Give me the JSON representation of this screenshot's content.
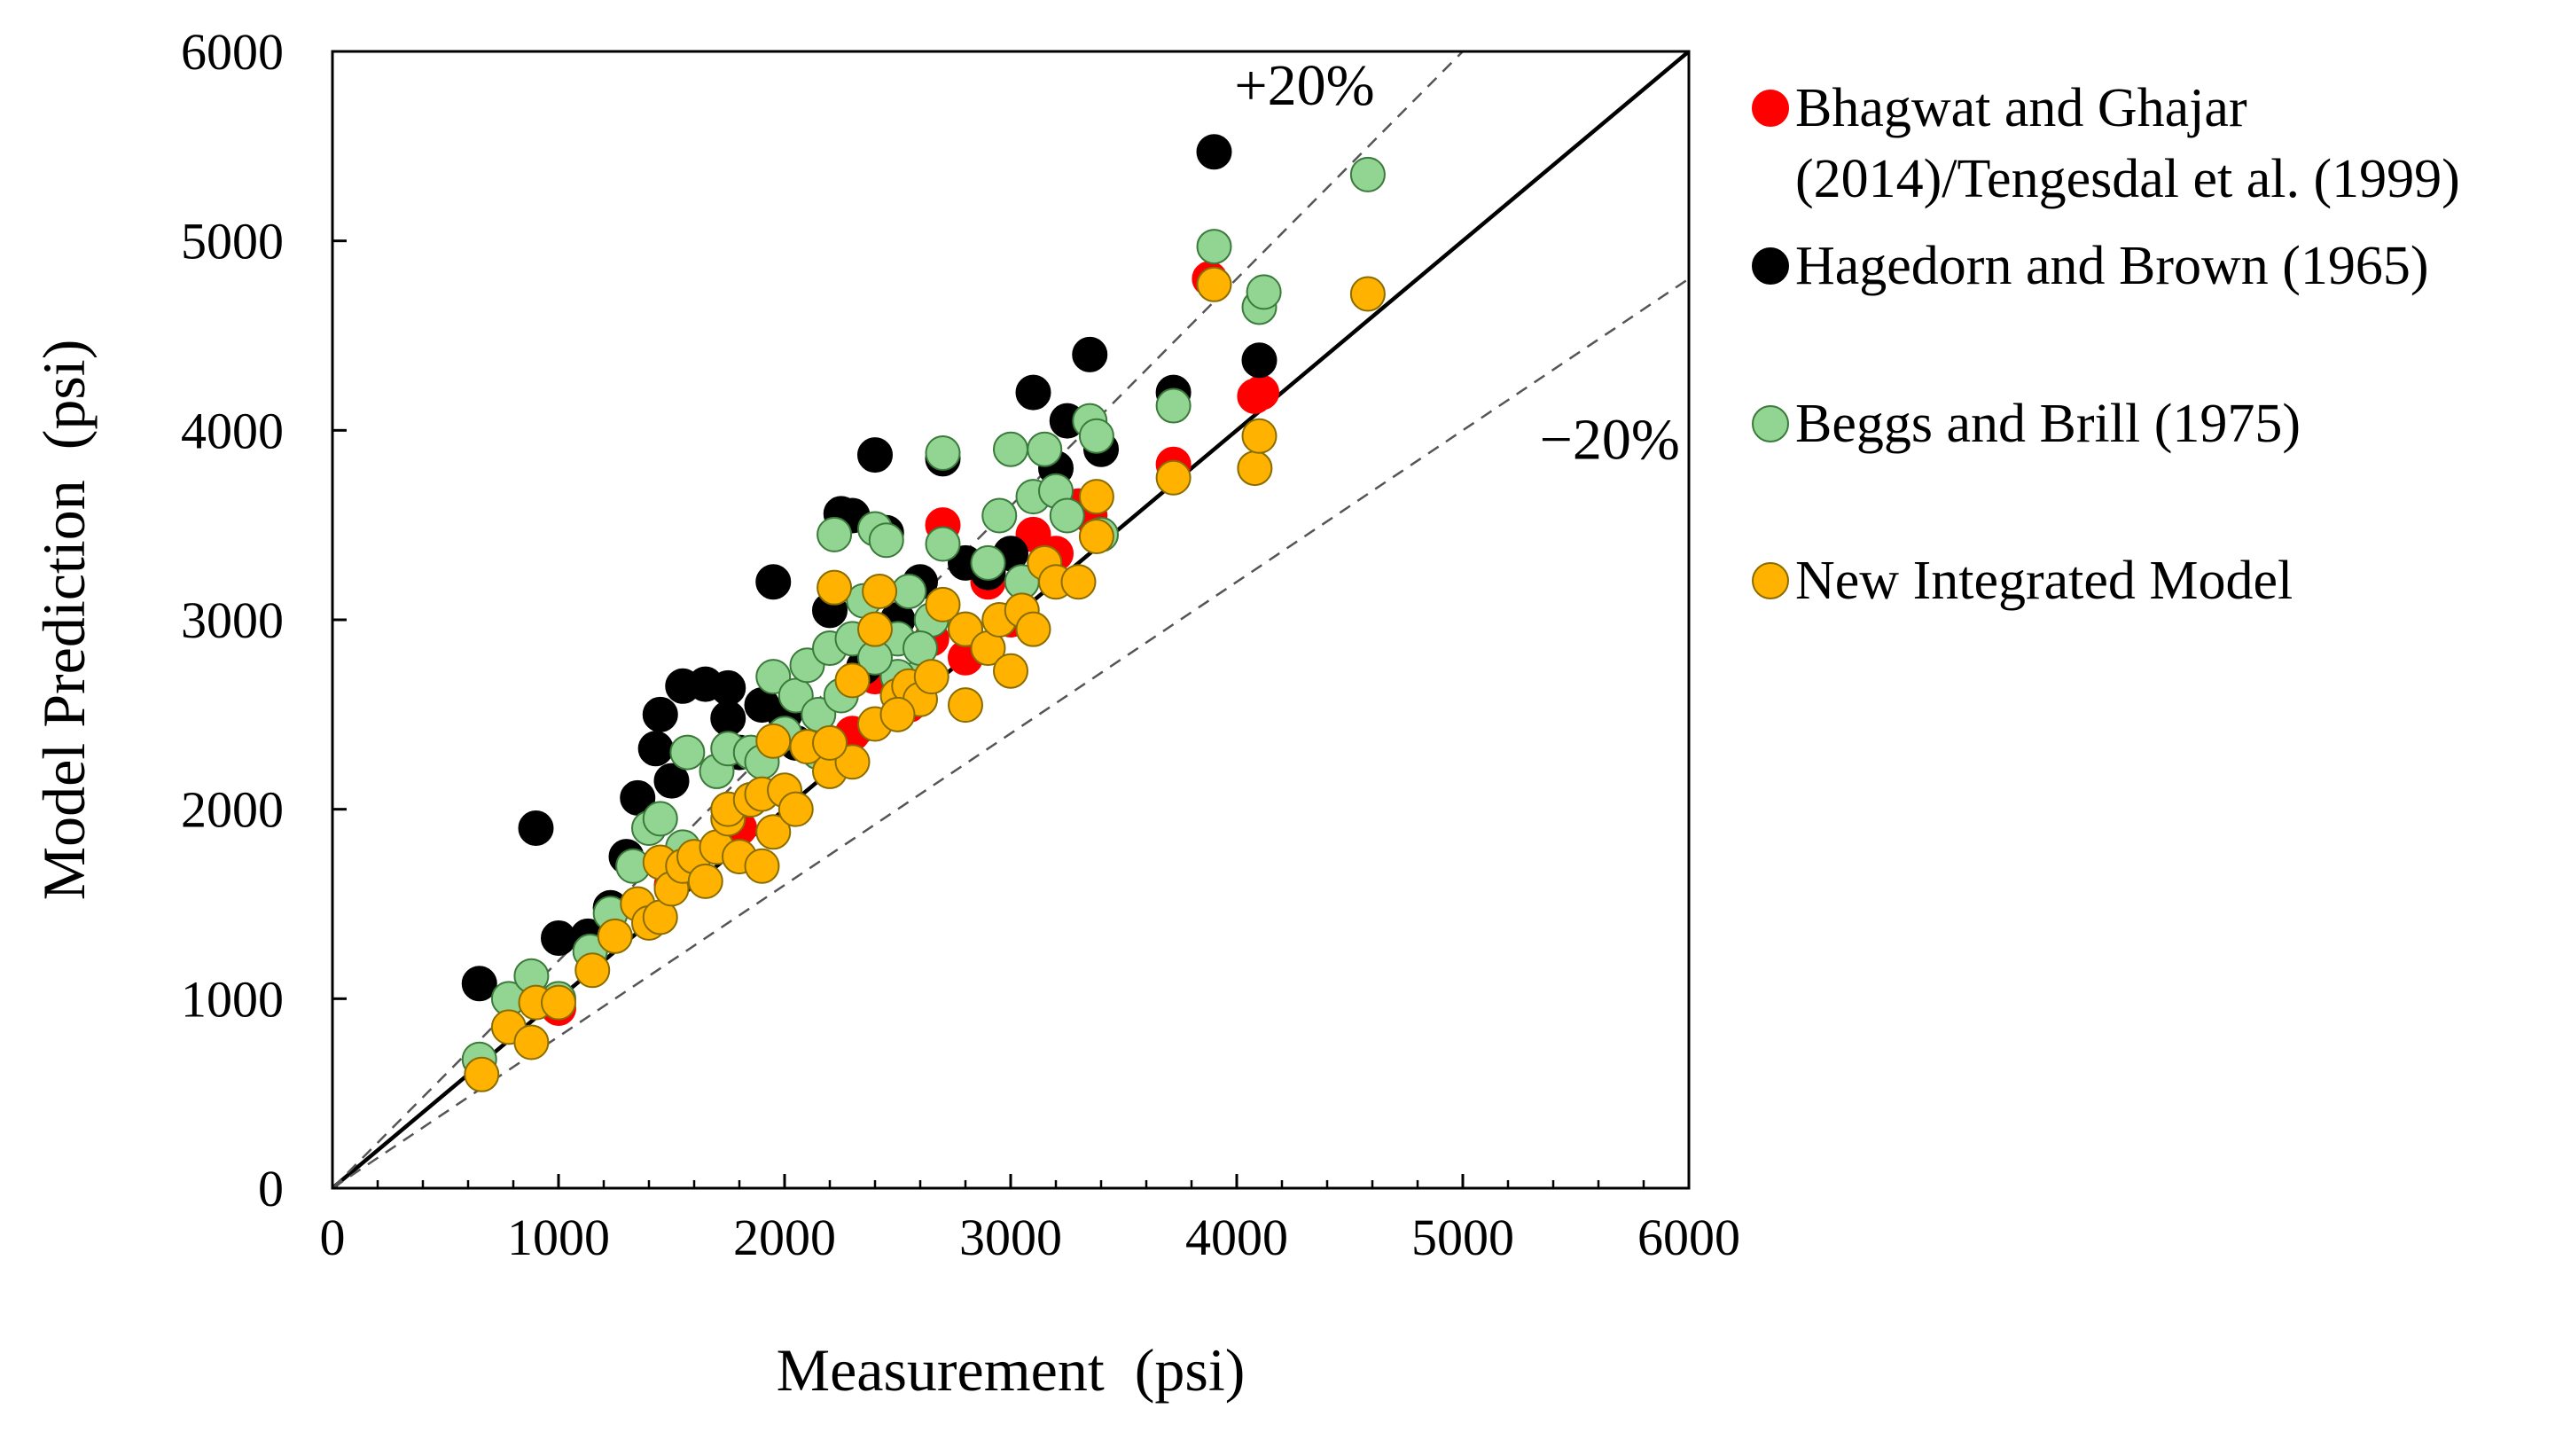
{
  "chart_data": {
    "type": "scatter",
    "title": "",
    "xlabel": "Measurement  (psi)",
    "ylabel": "Model Prediction  (psi)",
    "xlim": [
      0,
      6000
    ],
    "ylim": [
      0,
      6000
    ],
    "xticks": [
      0,
      1000,
      2000,
      3000,
      4000,
      5000,
      6000
    ],
    "yticks": [
      0,
      1000,
      2000,
      3000,
      4000,
      5000,
      6000
    ],
    "xtick_labels": [
      "0",
      "1000",
      "2000",
      "3000",
      "4000",
      "5000",
      "6000"
    ],
    "ytick_labels": [
      "0",
      "1000",
      "2000",
      "3000",
      "4000",
      "5000",
      "6000"
    ],
    "grid": false,
    "legend_position": "right",
    "reference_lines": [
      {
        "name": "equality",
        "slope": 1.0,
        "style": "solid",
        "color": "#000000"
      },
      {
        "name": "plus-20",
        "slope": 1.2,
        "style": "dashed",
        "color": "#555555"
      },
      {
        "name": "minus-20",
        "slope": 0.8,
        "style": "dashed",
        "color": "#555555"
      }
    ],
    "annotations": [
      {
        "text": "+20%",
        "x": 4300,
        "y": 5720
      },
      {
        "text": "−20%",
        "x": 5650,
        "y": 3850
      }
    ],
    "series": [
      {
        "name": "Bhagwat and Ghajar (2014)/Tengesdal et al. (1999)",
        "legend_lines": [
          "Bhagwat and Ghajar",
          "(2014)/Tengesdal et al. (1999)"
        ],
        "color": "#ff0000",
        "edge": "#ff0000",
        "points": [
          [
            1000,
            950
          ],
          [
            2200,
            2350
          ],
          [
            2300,
            2400
          ],
          [
            2550,
            2550
          ],
          [
            2700,
            3500
          ],
          [
            2800,
            2800
          ],
          [
            3100,
            3450
          ],
          [
            3200,
            3350
          ],
          [
            3350,
            3550
          ],
          [
            3720,
            3820
          ],
          [
            3880,
            4800
          ],
          [
            4080,
            4180
          ],
          [
            4110,
            4200
          ],
          [
            2900,
            3200
          ],
          [
            3000,
            3000
          ],
          [
            1500,
            1600
          ],
          [
            1800,
            1900
          ],
          [
            2400,
            2700
          ],
          [
            3300,
            3600
          ],
          [
            2650,
            2900
          ]
        ]
      },
      {
        "name": "Hagedorn and Brown (1965)",
        "legend_lines": [
          "Hagedorn and Brown (1965)"
        ],
        "color": "#000000",
        "edge": "#000000",
        "points": [
          [
            650,
            1080
          ],
          [
            900,
            1900
          ],
          [
            1000,
            1320
          ],
          [
            1130,
            1330
          ],
          [
            1230,
            1480
          ],
          [
            1300,
            1750
          ],
          [
            1350,
            2060
          ],
          [
            1430,
            2320
          ],
          [
            1450,
            2500
          ],
          [
            1500,
            2150
          ],
          [
            1550,
            2650
          ],
          [
            1650,
            2660
          ],
          [
            1750,
            2640
          ],
          [
            1750,
            2480
          ],
          [
            1950,
            3200
          ],
          [
            1900,
            2550
          ],
          [
            2000,
            2500
          ],
          [
            2050,
            2350
          ],
          [
            2200,
            3050
          ],
          [
            2250,
            3560
          ],
          [
            2300,
            3550
          ],
          [
            2400,
            3870
          ],
          [
            2450,
            3460
          ],
          [
            2500,
            3000
          ],
          [
            2600,
            3200
          ],
          [
            2700,
            3850
          ],
          [
            2800,
            3300
          ],
          [
            2900,
            3250
          ],
          [
            3000,
            3350
          ],
          [
            3100,
            4200
          ],
          [
            3200,
            3800
          ],
          [
            3250,
            4050
          ],
          [
            3350,
            4400
          ],
          [
            3400,
            3900
          ],
          [
            3720,
            4200
          ],
          [
            3900,
            5470
          ],
          [
            4100,
            4370
          ],
          [
            2350,
            2750
          ],
          [
            2550,
            2600
          ],
          [
            1800,
            2300
          ]
        ]
      },
      {
        "name": "Beggs and Brill (1975)",
        "legend_lines": [
          "Beggs and Brill (1975)"
        ],
        "color": "#92d492",
        "edge": "#3a7a3a",
        "points": [
          [
            650,
            680
          ],
          [
            780,
            1000
          ],
          [
            880,
            1120
          ],
          [
            1000,
            1000
          ],
          [
            1140,
            1250
          ],
          [
            1230,
            1450
          ],
          [
            1330,
            1700
          ],
          [
            1400,
            1900
          ],
          [
            1450,
            1950
          ],
          [
            1550,
            1800
          ],
          [
            1570,
            2300
          ],
          [
            1700,
            2200
          ],
          [
            1750,
            2320
          ],
          [
            1850,
            2300
          ],
          [
            1900,
            2250
          ],
          [
            1950,
            2700
          ],
          [
            2000,
            2400
          ],
          [
            2050,
            2600
          ],
          [
            2100,
            2760
          ],
          [
            2150,
            2500
          ],
          [
            2200,
            2850
          ],
          [
            2220,
            3450
          ],
          [
            2250,
            2600
          ],
          [
            2300,
            2900
          ],
          [
            2350,
            3100
          ],
          [
            2400,
            3480
          ],
          [
            2450,
            3420
          ],
          [
            2500,
            2900
          ],
          [
            2550,
            3150
          ],
          [
            2600,
            2700
          ],
          [
            2650,
            3000
          ],
          [
            2700,
            3400
          ],
          [
            2700,
            3880
          ],
          [
            2800,
            2950
          ],
          [
            2900,
            3300
          ],
          [
            2950,
            3550
          ],
          [
            3000,
            3900
          ],
          [
            3050,
            3200
          ],
          [
            3100,
            3650
          ],
          [
            3150,
            3900
          ],
          [
            3200,
            3680
          ],
          [
            3250,
            3550
          ],
          [
            3350,
            4050
          ],
          [
            3380,
            3970
          ],
          [
            3400,
            3450
          ],
          [
            3720,
            4130
          ],
          [
            3900,
            4970
          ],
          [
            4100,
            4650
          ],
          [
            4120,
            4730
          ],
          [
            4580,
            5350
          ],
          [
            2500,
            2700
          ],
          [
            2400,
            2800
          ],
          [
            1850,
            2050
          ],
          [
            2150,
            2300
          ],
          [
            2600,
            2850
          ]
        ]
      },
      {
        "name": "New Integrated Model",
        "legend_lines": [
          "New Integrated Model"
        ],
        "color": "#ffb300",
        "edge": "#8a6d00",
        "points": [
          [
            660,
            600
          ],
          [
            780,
            850
          ],
          [
            880,
            770
          ],
          [
            900,
            980
          ],
          [
            1000,
            980
          ],
          [
            1150,
            1150
          ],
          [
            1250,
            1330
          ],
          [
            1350,
            1500
          ],
          [
            1400,
            1400
          ],
          [
            1450,
            1430
          ],
          [
            1450,
            1720
          ],
          [
            1500,
            1580
          ],
          [
            1550,
            1700
          ],
          [
            1600,
            1750
          ],
          [
            1650,
            1620
          ],
          [
            1700,
            1800
          ],
          [
            1750,
            1950
          ],
          [
            1750,
            2000
          ],
          [
            1800,
            1750
          ],
          [
            1850,
            2050
          ],
          [
            1900,
            1700
          ],
          [
            1900,
            2080
          ],
          [
            1950,
            1880
          ],
          [
            1950,
            2360
          ],
          [
            2000,
            2100
          ],
          [
            2050,
            2000
          ],
          [
            2100,
            2330
          ],
          [
            2200,
            2200
          ],
          [
            2220,
            3170
          ],
          [
            2300,
            2250
          ],
          [
            2300,
            2680
          ],
          [
            2400,
            2450
          ],
          [
            2400,
            2950
          ],
          [
            2420,
            3150
          ],
          [
            2500,
            2600
          ],
          [
            2550,
            2650
          ],
          [
            2600,
            2580
          ],
          [
            2650,
            2700
          ],
          [
            2700,
            3080
          ],
          [
            2800,
            2550
          ],
          [
            2800,
            2950
          ],
          [
            2900,
            2850
          ],
          [
            2950,
            3000
          ],
          [
            3000,
            2730
          ],
          [
            3050,
            3050
          ],
          [
            3100,
            2950
          ],
          [
            3150,
            3300
          ],
          [
            3200,
            3200
          ],
          [
            3300,
            3200
          ],
          [
            3380,
            3440
          ],
          [
            3380,
            3650
          ],
          [
            3720,
            3750
          ],
          [
            3900,
            4770
          ],
          [
            4080,
            3800
          ],
          [
            4100,
            3970
          ],
          [
            4580,
            4720
          ],
          [
            2500,
            2500
          ],
          [
            2200,
            2350
          ]
        ]
      }
    ]
  }
}
